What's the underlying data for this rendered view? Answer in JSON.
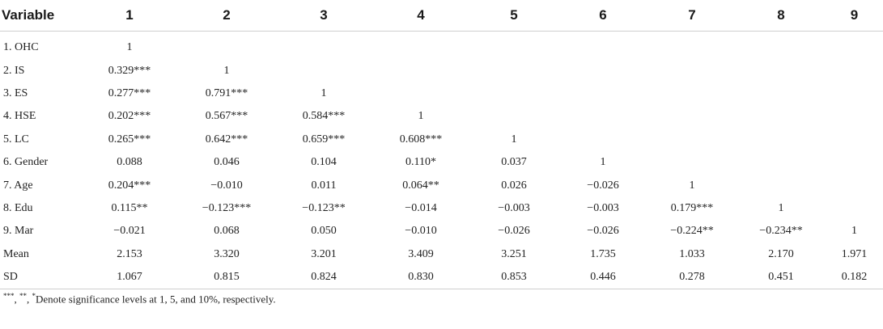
{
  "headers": [
    "Variable",
    "1",
    "2",
    "3",
    "4",
    "5",
    "6",
    "7",
    "8",
    "9"
  ],
  "rows": [
    [
      "1. OHC",
      "1",
      "",
      "",
      "",
      "",
      "",
      "",
      "",
      ""
    ],
    [
      "2. IS",
      "0.329***",
      "1",
      "",
      "",
      "",
      "",
      "",
      "",
      ""
    ],
    [
      "3. ES",
      "0.277***",
      "0.791***",
      "1",
      "",
      "",
      "",
      "",
      "",
      ""
    ],
    [
      "4. HSE",
      "0.202***",
      "0.567***",
      "0.584***",
      "1",
      "",
      "",
      "",
      "",
      ""
    ],
    [
      "5. LC",
      "0.265***",
      "0.642***",
      "0.659***",
      "0.608***",
      "1",
      "",
      "",
      "",
      ""
    ],
    [
      "6. Gender",
      "0.088",
      "0.046",
      "0.104",
      "0.110*",
      "0.037",
      "1",
      "",
      "",
      ""
    ],
    [
      "7. Age",
      "0.204***",
      "−0.010",
      "0.011",
      "0.064**",
      "0.026",
      "−0.026",
      "1",
      "",
      ""
    ],
    [
      "8. Edu",
      "0.115**",
      "−0.123***",
      "−0.123**",
      "−0.014",
      "−0.003",
      "−0.003",
      "0.179***",
      "1",
      ""
    ],
    [
      "9. Mar",
      "−0.021",
      "0.068",
      "0.050",
      "−0.010",
      "−0.026",
      "−0.026",
      "−0.224**",
      "−0.234**",
      "1"
    ],
    [
      "Mean",
      "2.153",
      "3.320",
      "3.201",
      "3.409",
      "3.251",
      "1.735",
      "1.033",
      "2.170",
      "1.971"
    ],
    [
      "SD",
      "1.067",
      "0.815",
      "0.824",
      "0.830",
      "0.853",
      "0.446",
      "0.278",
      "0.451",
      "0.182"
    ]
  ],
  "footnote": {
    "sup1": "***",
    "sep1": ", ",
    "sup2": "**",
    "sep2": ", ",
    "sup3": "*",
    "text": "Denote significance levels at 1, 5, and 10%, respectively."
  }
}
